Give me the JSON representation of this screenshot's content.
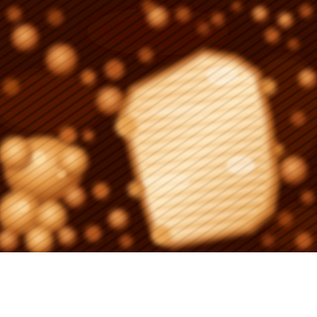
{
  "image": {
    "kind": "scanning-probe-micrograph",
    "colormap": [
      "#1e0600",
      "#4a1400",
      "#8a3a0a",
      "#c96a1e",
      "#eea24e",
      "#ffd89a",
      "#fff6e6"
    ],
    "background_color": "#ffffff",
    "has_text": false
  }
}
